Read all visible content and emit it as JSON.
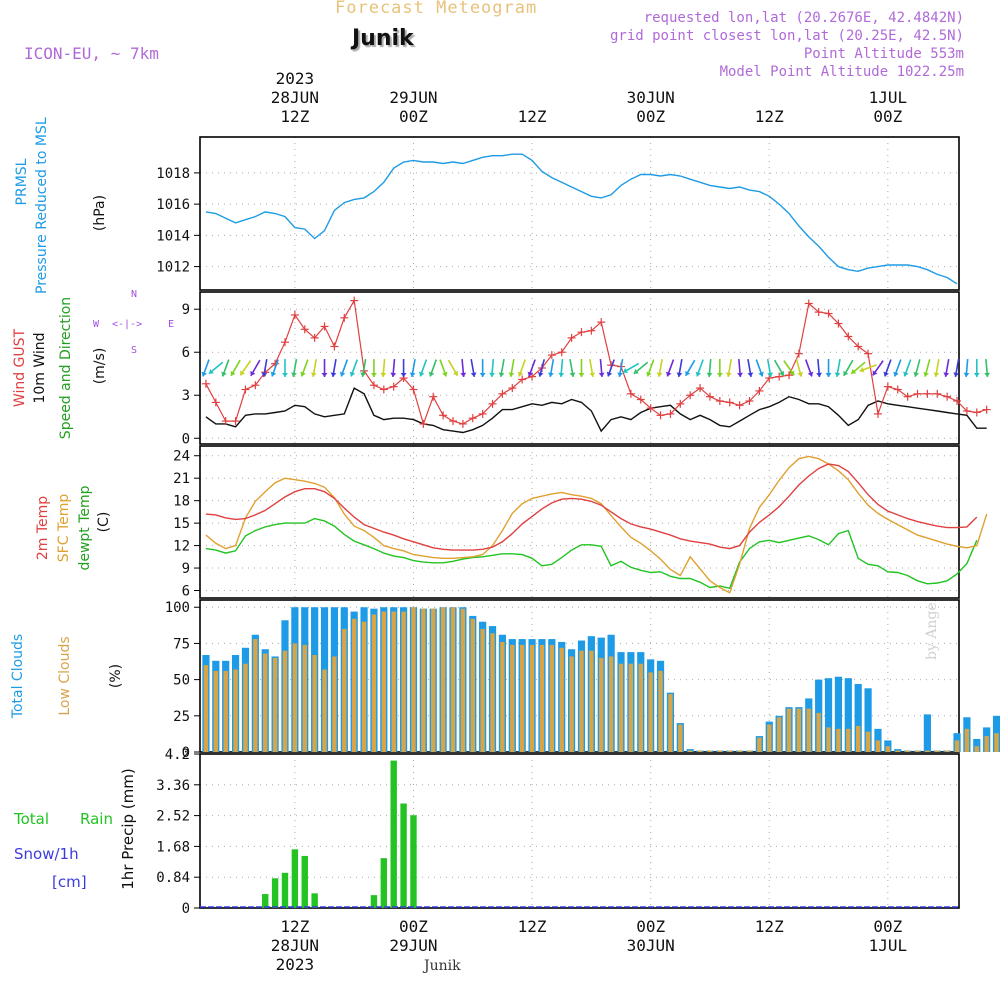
{
  "header": {
    "title": "Forecast Meteogram",
    "location": "Junik",
    "model": "ICON-EU, ~ 7km",
    "requested": "requested lon,lat (20.2676E, 42.4842N)",
    "grid": "grid point closest lon,lat (20.25E, 42.5N)",
    "point_alt": "Point Altitude 553m",
    "model_alt": "Model Point Altitude 1022.25m",
    "footer_location": "Junik",
    "watermark": "by Angel"
  },
  "colors": {
    "pressure": "#1e9be6",
    "gust": "#e04040",
    "wind": "#111111",
    "temp": "#e04040",
    "sfc": "#e0a030",
    "dewpt": "#22c322",
    "total_clouds": "#1e9be6",
    "low_clouds": "#d8a448",
    "rain": "#22c322",
    "snow": "#3b3bdc",
    "compass": "#a050d8"
  },
  "time_axis": {
    "top_ticks": [
      {
        "t": 12,
        "lines": [
          "2023",
          "28JUN",
          "12Z"
        ]
      },
      {
        "t": 24,
        "lines": [
          "29JUN",
          "00Z"
        ]
      },
      {
        "t": 36,
        "lines": [
          "12Z"
        ]
      },
      {
        "t": 48,
        "lines": [
          "30JUN",
          "00Z"
        ]
      },
      {
        "t": 60,
        "lines": [
          "12Z"
        ]
      },
      {
        "t": 72,
        "lines": [
          "1JUL",
          "00Z"
        ]
      }
    ],
    "bottom_ticks": [
      {
        "t": 12,
        "lines": [
          "12Z",
          "28JUN",
          "2023"
        ]
      },
      {
        "t": 24,
        "lines": [
          "00Z",
          "29JUN"
        ]
      },
      {
        "t": 36,
        "lines": [
          "12Z"
        ]
      },
      {
        "t": 48,
        "lines": [
          "00Z",
          "30JUN"
        ]
      },
      {
        "t": 60,
        "lines": [
          "12Z"
        ]
      },
      {
        "t": 72,
        "lines": [
          "00Z",
          "1JUL"
        ]
      }
    ]
  },
  "labels": {
    "pressure": [
      "PRMSL",
      "Pressure Reduced to MSL"
    ],
    "pressure_unit": "(hPa)",
    "gust": "Wind GUST",
    "wind": "10m Wind",
    "wind_dir": "Speed and Direction",
    "wind_unit": "(m/s)",
    "compass": {
      "n": "N",
      "s": "S",
      "w": "W",
      "e": "E",
      "arrow": "<-|->"
    },
    "temp": "2m Temp",
    "sfc": "SFC Temp",
    "dewpt": "dewpt Temp",
    "temp_unit": "(C)",
    "total_clouds": "Total Clouds",
    "low_clouds": "Low Clouds",
    "cloud_unit": "(%)",
    "rain_total": "Total",
    "rain_rain": "Rain",
    "snow": "Snow/1h",
    "snow_unit": "[cm]",
    "precip": "1hr Precip (mm)"
  },
  "chart_data": [
    {
      "type": "line",
      "title": "PRMSL Pressure Reduced to MSL",
      "ylabel": "(hPa)",
      "ylim": [
        1010.5,
        1020.3
      ],
      "yticks": [
        1012,
        1014,
        1016,
        1018
      ],
      "x_hours": [
        0,
        1,
        2,
        3,
        4,
        5,
        6,
        7,
        8,
        9,
        10,
        11,
        12,
        13,
        14,
        15,
        16,
        17,
        18,
        19,
        20,
        21,
        22,
        23,
        24,
        25,
        26,
        27,
        28,
        29,
        30,
        31,
        32,
        33,
        34,
        35,
        36,
        37,
        38,
        39,
        40,
        41,
        42,
        43,
        44,
        45,
        46,
        47,
        48,
        49,
        50,
        51,
        52,
        53,
        54,
        55,
        56,
        57,
        58,
        59,
        60,
        61,
        62,
        63,
        64,
        65,
        66,
        67,
        68,
        69,
        70,
        71,
        72,
        73,
        74,
        75,
        76
      ],
      "values": [
        1015.5,
        1015.4,
        1015.1,
        1014.8,
        1015.0,
        1015.2,
        1015.5,
        1015.4,
        1015.2,
        1014.5,
        1014.4,
        1013.8,
        1014.3,
        1015.6,
        1016.1,
        1016.3,
        1016.4,
        1016.8,
        1017.4,
        1018.3,
        1018.7,
        1018.8,
        1018.7,
        1018.7,
        1018.6,
        1018.7,
        1018.6,
        1018.8,
        1019.0,
        1019.1,
        1019.1,
        1019.2,
        1019.2,
        1018.8,
        1018.1,
        1017.7,
        1017.4,
        1017.1,
        1016.8,
        1016.5,
        1016.4,
        1016.6,
        1017.2,
        1017.6,
        1017.9,
        1017.9,
        1017.8,
        1017.9,
        1017.8,
        1017.6,
        1017.4,
        1017.2,
        1017.1,
        1017.0,
        1017.1,
        1016.9,
        1016.8,
        1016.5,
        1016.0,
        1015.4,
        1014.6,
        1013.9,
        1013.3,
        1012.6,
        1012.0,
        1011.8,
        1011.7,
        1011.9,
        1012.0,
        1012.1,
        1012.1,
        1012.1,
        1012.0,
        1011.8,
        1011.5,
        1011.3,
        1010.9
      ]
    },
    {
      "type": "line",
      "title": "Wind GUST / 10m Wind Speed and Direction",
      "ylabel": "(m/s)",
      "ylim": [
        -0.4,
        10.2
      ],
      "yticks": [
        0,
        3,
        6,
        9
      ],
      "series": [
        {
          "name": "Wind GUST",
          "values": [
            3.8,
            2.5,
            1.2,
            1.2,
            3.4,
            3.7,
            4.6,
            5.2,
            6.7,
            8.6,
            7.6,
            7.0,
            7.8,
            6.4,
            8.4,
            9.6,
            4.7,
            3.7,
            3.4,
            3.6,
            4.2,
            3.4,
            1.0,
            2.9,
            1.6,
            1.2,
            1.0,
            1.4,
            1.7,
            2.4,
            3.1,
            3.5,
            4.1,
            4.3,
            4.9,
            5.8,
            6.0,
            7.0,
            7.4,
            7.5,
            8.1,
            5.1,
            5.0,
            3.1,
            2.7,
            2.1,
            1.6,
            1.7,
            2.4,
            3.0,
            3.5,
            2.9,
            2.6,
            2.5,
            2.3,
            2.6,
            3.3,
            4.2,
            4.3,
            4.4,
            5.9,
            9.4,
            8.8,
            8.7,
            8.0,
            7.1,
            6.4,
            5.9,
            1.7,
            3.6,
            3.4,
            2.9,
            3.1,
            3.1,
            3.1,
            2.9,
            2.6,
            1.9,
            1.8,
            2.0
          ]
        },
        {
          "name": "10m Wind",
          "values": [
            1.5,
            1.0,
            1.0,
            0.8,
            1.6,
            1.7,
            1.7,
            1.8,
            1.9,
            2.3,
            2.2,
            1.7,
            1.5,
            1.6,
            1.7,
            3.5,
            3.1,
            1.6,
            1.3,
            1.4,
            1.4,
            1.3,
            1.0,
            0.9,
            0.6,
            0.5,
            0.4,
            0.6,
            0.9,
            1.4,
            2.0,
            2.0,
            2.2,
            2.4,
            2.3,
            2.5,
            2.4,
            2.7,
            2.5,
            1.9,
            0.5,
            1.3,
            1.5,
            1.3,
            1.8,
            2.1,
            2.2,
            2.3,
            1.7,
            1.3,
            1.6,
            1.3,
            0.9,
            0.8,
            1.2,
            1.6,
            2.0,
            2.2,
            2.5,
            2.9,
            2.7,
            2.4,
            2.4,
            2.2,
            1.6,
            0.9,
            1.3,
            2.3,
            2.6,
            2.4,
            2.3,
            2.2,
            2.1,
            2.0,
            1.9,
            1.8,
            1.7,
            1.6,
            0.7,
            0.7
          ]
        }
      ],
      "arrows": {
        "name": "Speed and Direction",
        "level": 4.9,
        "colors": [
          "#1e9be6",
          "#22c3c3",
          "#34c06a",
          "#7ed321",
          "#c8d222",
          "#6f2ad8",
          "#3b3bdc"
        ],
        "angles_deg": [
          200,
          230,
          200,
          210,
          215,
          210,
          190,
          200,
          180,
          190,
          200,
          190,
          180,
          190,
          200,
          200,
          190,
          180,
          185,
          185,
          180,
          190,
          200,
          200,
          160,
          150,
          175,
          170,
          180,
          185,
          190,
          190,
          200,
          200,
          195,
          190,
          185,
          170,
          180,
          170,
          175,
          200,
          190,
          240,
          230,
          200,
          190,
          200,
          190,
          210,
          200,
          185,
          180,
          190,
          175,
          170,
          160,
          170,
          150,
          145,
          165,
          160,
          175,
          180,
          190,
          210,
          230,
          250,
          215,
          200,
          200,
          200,
          195,
          195,
          190,
          190,
          190,
          185,
          180,
          175
        ]
      }
    },
    {
      "type": "line",
      "title": "2m Temp / SFC Temp / dewpt Temp",
      "ylabel": "(C)",
      "ylim": [
        5,
        25.3
      ],
      "yticks": [
        6,
        9,
        12,
        15,
        18,
        21,
        24
      ],
      "series": [
        {
          "name": "2m Temp",
          "values": [
            16.2,
            16.1,
            15.7,
            15.5,
            15.6,
            16.1,
            16.7,
            17.6,
            18.5,
            19.2,
            19.6,
            19.6,
            19.2,
            18.3,
            17.0,
            15.8,
            14.8,
            14.3,
            13.8,
            13.4,
            12.9,
            12.5,
            12.1,
            11.7,
            11.5,
            11.4,
            11.4,
            11.4,
            11.5,
            11.8,
            12.5,
            13.6,
            14.9,
            15.9,
            16.9,
            17.7,
            18.2,
            18.3,
            18.2,
            17.9,
            17.4,
            16.5,
            15.6,
            14.9,
            14.5,
            14.2,
            13.8,
            13.4,
            12.9,
            12.6,
            12.4,
            12.2,
            11.8,
            11.6,
            12.0,
            13.8,
            15.1,
            16.1,
            17.2,
            18.6,
            20.1,
            21.3,
            22.3,
            22.9,
            22.7,
            21.9,
            20.4,
            18.8,
            17.5,
            16.6,
            16.1,
            15.6,
            15.2,
            14.9,
            14.6,
            14.4,
            14.4,
            14.5,
            15.8
          ]
        },
        {
          "name": "SFC Temp",
          "values": [
            13.4,
            12.3,
            11.6,
            12.0,
            15.7,
            17.9,
            19.2,
            20.4,
            21.0,
            20.8,
            20.6,
            20.3,
            19.8,
            18.4,
            16.2,
            14.6,
            14.0,
            13.1,
            12.0,
            11.6,
            11.3,
            10.8,
            10.6,
            10.4,
            10.3,
            10.3,
            10.4,
            10.5,
            10.8,
            12.0,
            14.0,
            16.3,
            17.6,
            18.3,
            18.6,
            18.9,
            19.1,
            18.8,
            18.6,
            18.3,
            17.6,
            16.0,
            14.5,
            13.1,
            12.3,
            11.3,
            10.2,
            8.8,
            8.0,
            10.5,
            8.9,
            7.3,
            6.4,
            5.7,
            9.5,
            14.3,
            17.1,
            18.8,
            20.7,
            22.4,
            23.6,
            23.9,
            23.6,
            22.9,
            22.0,
            20.8,
            19.0,
            17.4,
            16.3,
            15.5,
            14.8,
            14.1,
            13.4,
            13.0,
            12.6,
            12.2,
            11.9,
            11.7,
            12.0,
            16.2
          ]
        },
        {
          "name": "dewpt Temp",
          "values": [
            11.6,
            11.4,
            11.0,
            11.3,
            13.3,
            14.0,
            14.5,
            14.8,
            15.0,
            15.0,
            15.0,
            15.6,
            15.3,
            14.6,
            13.5,
            12.6,
            12.1,
            11.6,
            11.0,
            10.6,
            10.4,
            10.0,
            9.8,
            9.7,
            9.7,
            9.9,
            10.2,
            10.4,
            10.5,
            10.7,
            10.9,
            10.9,
            10.8,
            10.3,
            9.3,
            9.5,
            10.4,
            11.4,
            12.1,
            12.1,
            11.9,
            9.3,
            9.9,
            9.1,
            8.7,
            8.4,
            8.5,
            7.9,
            7.6,
            7.6,
            7.1,
            6.4,
            6.6,
            6.3,
            9.8,
            11.6,
            12.5,
            12.7,
            12.4,
            12.7,
            13.0,
            13.3,
            12.8,
            12.1,
            13.6,
            14.0,
            10.3,
            9.5,
            9.3,
            8.5,
            8.4,
            8.0,
            7.3,
            6.9,
            7.0,
            7.3,
            8.2,
            9.6,
            12.7
          ]
        }
      ]
    },
    {
      "type": "bar",
      "title": "Total Clouds / Low Clouds",
      "ylabel": "(%)",
      "ylim": [
        0,
        105
      ],
      "yticks": [
        0,
        25,
        50,
        75,
        100
      ],
      "series": [
        {
          "name": "Total Clouds",
          "values": [
            67,
            63,
            63,
            67,
            72,
            81,
            71,
            66,
            91,
            100,
            100,
            100,
            100,
            100,
            100,
            97,
            100,
            99,
            100,
            100,
            100,
            100,
            99,
            99,
            100,
            100,
            100,
            94,
            90,
            87,
            81,
            78,
            78,
            78,
            78,
            78,
            76,
            71,
            77,
            80,
            79,
            81,
            69,
            69,
            69,
            64,
            63,
            41,
            20,
            2,
            1,
            1,
            1,
            1,
            1,
            1,
            11,
            21,
            25,
            31,
            31,
            37,
            50,
            51,
            52,
            51,
            47,
            44,
            16,
            8,
            2,
            1,
            1,
            26,
            1,
            1,
            13,
            24,
            9,
            17,
            25
          ]
        },
        {
          "name": "Low Clouds",
          "values": [
            60,
            56,
            56,
            57,
            61,
            78,
            68,
            65,
            70,
            75,
            74,
            67,
            57,
            66,
            85,
            92,
            90,
            95,
            97,
            97,
            97,
            100,
            99,
            99,
            100,
            100,
            99,
            92,
            85,
            82,
            76,
            74,
            74,
            74,
            74,
            74,
            72,
            66,
            70,
            70,
            65,
            66,
            61,
            61,
            61,
            55,
            56,
            40,
            19,
            1,
            1,
            1,
            1,
            1,
            1,
            1,
            10,
            19,
            24,
            30,
            30,
            30,
            27,
            17,
            16,
            16,
            18,
            14,
            8,
            4,
            1,
            1,
            1,
            1,
            1,
            1,
            8,
            16,
            4,
            11,
            13
          ]
        }
      ]
    },
    {
      "type": "bar",
      "title": "Total Rain / Snow",
      "ylabel": "1hr Precip (mm)",
      "ylim": [
        0,
        4.2
      ],
      "yticks": [
        0,
        0.84,
        1.68,
        2.52,
        3.36,
        4.2
      ],
      "x_hours": [
        9,
        10,
        11,
        12,
        13,
        14,
        20,
        21,
        22,
        23,
        24
      ],
      "series": [
        {
          "name": "Total Rain",
          "values": [
            0.38,
            0.81,
            0.96,
            1.6,
            1.42,
            0.4,
            0.35,
            1.36,
            4.02,
            2.85,
            2.53
          ]
        },
        {
          "name": "Snow/1h",
          "values": [
            0,
            0,
            0,
            0,
            0,
            0,
            0,
            0,
            0,
            0,
            0
          ]
        }
      ]
    }
  ]
}
